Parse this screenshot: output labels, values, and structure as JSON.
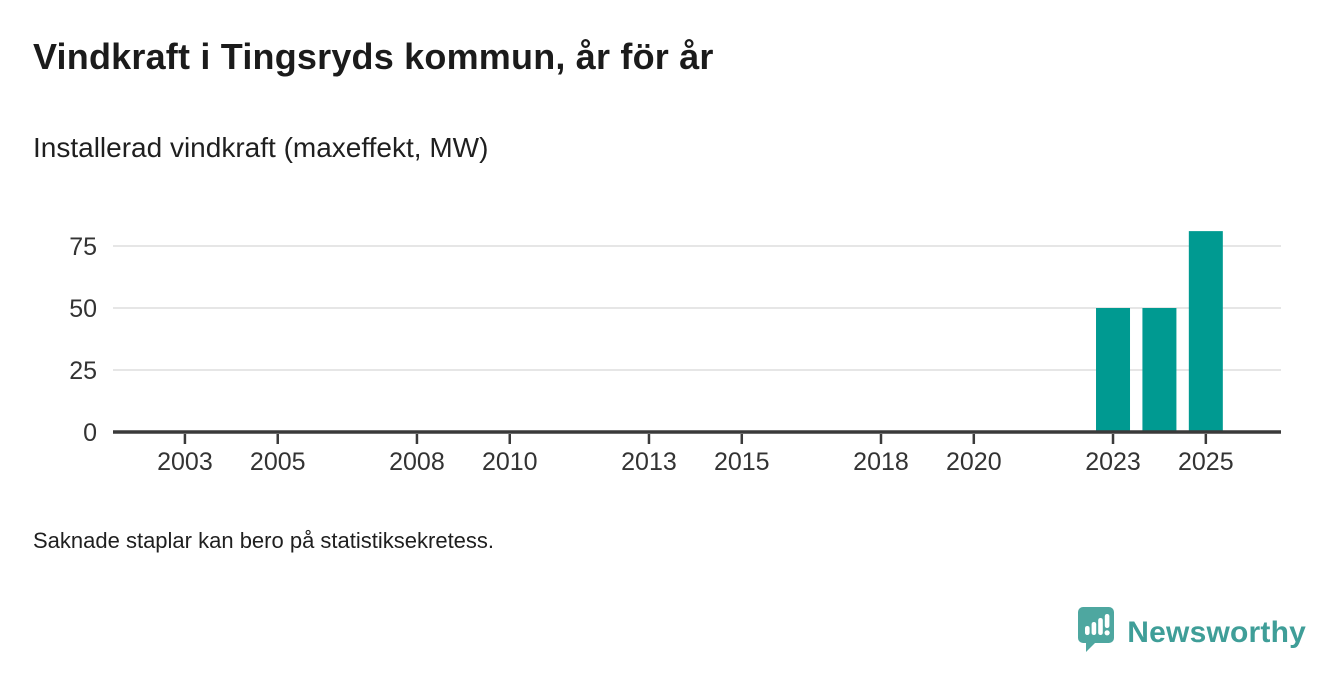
{
  "header": {
    "title": "Vindkraft i Tingsryds kommun, år för år",
    "subtitle": "Installerad vindkraft (maxeffekt, MW)"
  },
  "footer": {
    "note": "Saknade staplar kan bero på statistiksekretess.",
    "brand": "Newsworthy"
  },
  "colors": {
    "bar": "#009a91",
    "gridline": "#dedede",
    "axis": "#3a3a3a",
    "tick_label": "#333333",
    "logo_icon": "#4ea7a0",
    "logo_text": "#3f9e98"
  },
  "chart_data": {
    "type": "bar",
    "title": "Vindkraft i Tingsryds kommun, år för år",
    "subtitle": "Installerad vindkraft (maxeffekt, MW)",
    "xlabel": "",
    "ylabel": "Installerad vindkraft (maxeffekt, MW)",
    "x": [
      2023,
      2024,
      2025
    ],
    "values": [
      50,
      50,
      81
    ],
    "x_domain": [
      2001.45,
      2026.62
    ],
    "ylim": [
      0,
      84
    ],
    "yticks": [
      0,
      25,
      50,
      75
    ],
    "xticks": [
      2003,
      2005,
      2008,
      2010,
      2013,
      2015,
      2018,
      2020,
      2023,
      2025
    ],
    "grid": "horizontal",
    "legend": "none",
    "note": "Saknade staplar kan bero på statistiksekretess."
  }
}
